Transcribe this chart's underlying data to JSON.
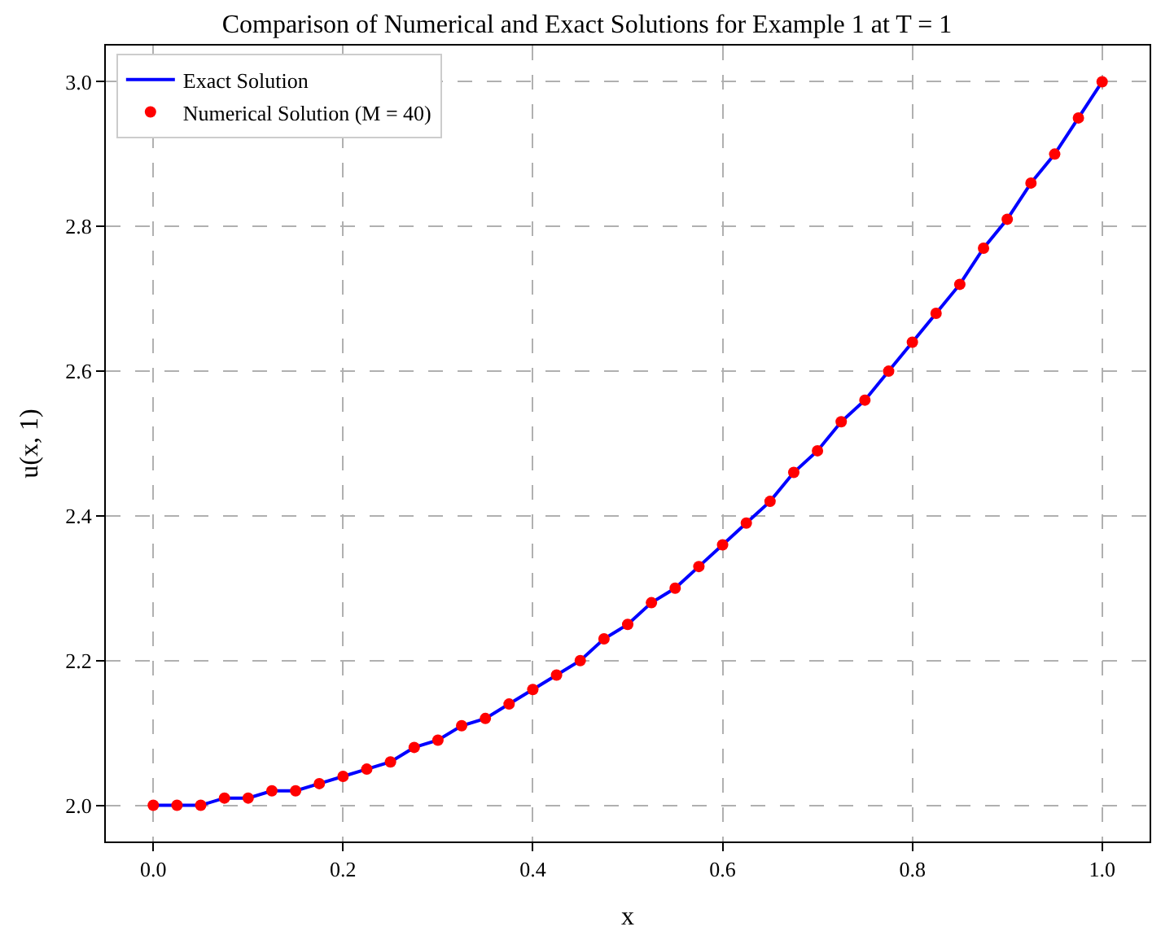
{
  "chart_data": {
    "type": "line",
    "title": "Comparison of Numerical and Exact Solutions for Example 1 at T = 1",
    "xlabel": "x",
    "ylabel": "u(x, 1)",
    "x": [
      0,
      0.025,
      0.05,
      0.075,
      0.1,
      0.125,
      0.15,
      0.175,
      0.2,
      0.225,
      0.25,
      0.275,
      0.3,
      0.325,
      0.35,
      0.375,
      0.4,
      0.425,
      0.45,
      0.475,
      0.5,
      0.525,
      0.55,
      0.575,
      0.6,
      0.625,
      0.65,
      0.675,
      0.7,
      0.725,
      0.75,
      0.775,
      0.8,
      0.825,
      0.85,
      0.875,
      0.9,
      0.925,
      0.95,
      0.975,
      1
    ],
    "series": [
      {
        "name": "Exact Solution",
        "color": "#0000ff",
        "marker": "none",
        "line_style": "solid",
        "values": [
          2.0,
          2.0,
          2.0,
          2.01,
          2.01,
          2.02,
          2.02,
          2.03,
          2.04,
          2.05,
          2.06,
          2.08,
          2.09,
          2.11,
          2.12,
          2.14,
          2.16,
          2.18,
          2.2,
          2.23,
          2.25,
          2.28,
          2.3,
          2.33,
          2.36,
          2.39,
          2.42,
          2.46,
          2.49,
          2.53,
          2.56,
          2.6,
          2.64,
          2.68,
          2.72,
          2.77,
          2.81,
          2.86,
          2.9,
          2.95,
          3.0
        ]
      },
      {
        "name": "Numerical Solution (M = 40)",
        "type": "scatter",
        "color": "#ff0000",
        "marker": "circle",
        "values": [
          2.0,
          2.0,
          2.0,
          2.01,
          2.01,
          2.02,
          2.02,
          2.03,
          2.04,
          2.05,
          2.06,
          2.08,
          2.09,
          2.11,
          2.12,
          2.14,
          2.16,
          2.18,
          2.2,
          2.23,
          2.25,
          2.28,
          2.3,
          2.33,
          2.36,
          2.39,
          2.42,
          2.46,
          2.49,
          2.53,
          2.56,
          2.6,
          2.64,
          2.68,
          2.72,
          2.77,
          2.81,
          2.86,
          2.9,
          2.95,
          3.0
        ]
      }
    ],
    "xlim": [
      -0.05,
      1.05
    ],
    "ylim": [
      1.95,
      3.05
    ],
    "xticks": [
      {
        "value": 0,
        "label": "0.0"
      },
      0.2,
      0.4,
      0.6,
      0.8,
      {
        "value": 1,
        "label": "1.0"
      }
    ],
    "yticks": [
      {
        "value": 2,
        "label": "2.0"
      },
      2.2,
      2.4,
      2.6,
      2.8,
      {
        "value": 3,
        "label": "3.0"
      }
    ],
    "grid": true,
    "legend": "top left"
  }
}
